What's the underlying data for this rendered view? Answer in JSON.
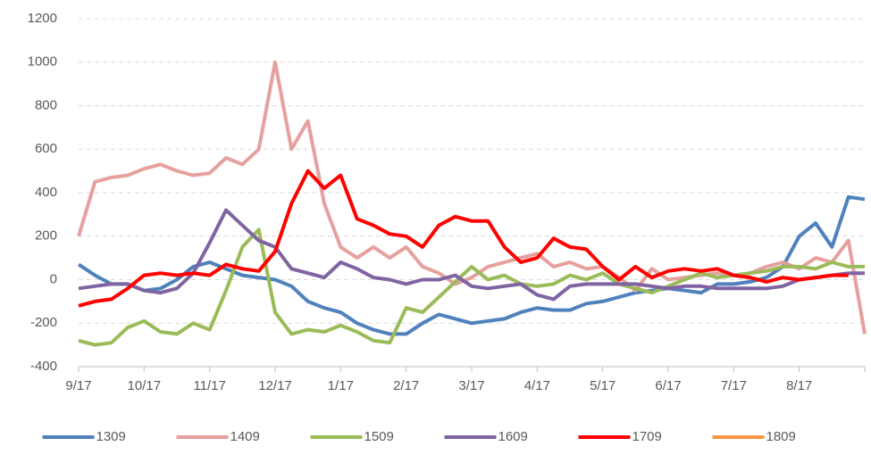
{
  "chart_data": {
    "type": "line",
    "categories": [
      "9/17",
      null,
      null,
      null,
      "10/17",
      null,
      null,
      null,
      "11/17",
      null,
      null,
      null,
      "12/17",
      null,
      null,
      null,
      "1/17",
      null,
      null,
      null,
      "2/17",
      null,
      null,
      null,
      "3/17",
      null,
      null,
      null,
      "4/17",
      null,
      null,
      null,
      "5/17",
      null,
      null,
      null,
      "6/17",
      null,
      null,
      null,
      "7/17",
      null,
      null,
      null,
      "8/17",
      null,
      null,
      null,
      null
    ],
    "ylim": [
      -400,
      1200
    ],
    "yticks": [
      -400,
      -200,
      0,
      200,
      400,
      600,
      800,
      1000,
      1200
    ],
    "grid": true,
    "legend": "bottom",
    "series": [
      {
        "name": "1309",
        "color": "#4f81bd",
        "values": [
          70,
          20,
          -20,
          -20,
          -50,
          -40,
          0,
          60,
          80,
          50,
          20,
          10,
          0,
          -30,
          -100,
          -130,
          -150,
          -200,
          -230,
          -250,
          -250,
          -200,
          -160,
          -180,
          -200,
          -190,
          -180,
          -150,
          -130,
          -140,
          -140,
          -110,
          -100,
          -80,
          -60,
          -50,
          -40,
          -50,
          -60,
          -20,
          -20,
          -10,
          10,
          60,
          200,
          260,
          150,
          380,
          370
        ]
      },
      {
        "name": "1409",
        "color": "#e6a09e",
        "values": [
          200,
          450,
          470,
          480,
          510,
          530,
          500,
          480,
          490,
          560,
          530,
          600,
          1000,
          600,
          730,
          350,
          150,
          100,
          150,
          100,
          150,
          60,
          30,
          -20,
          10,
          60,
          80,
          100,
          120,
          60,
          80,
          50,
          60,
          10,
          -50,
          50,
          0,
          10,
          20,
          30,
          20,
          30,
          60,
          80,
          50,
          100,
          80,
          180,
          -250
        ]
      },
      {
        "name": "1509",
        "color": "#9bbb59",
        "values": [
          -280,
          -300,
          -290,
          -220,
          -190,
          -240,
          -250,
          -200,
          -230,
          -50,
          150,
          230,
          -150,
          -250,
          -230,
          -240,
          -210,
          -240,
          -280,
          -290,
          -130,
          -150,
          -80,
          -10,
          60,
          0,
          20,
          -20,
          -30,
          -20,
          20,
          0,
          30,
          -20,
          -40,
          -60,
          -30,
          0,
          30,
          10,
          20,
          30,
          40,
          60,
          60,
          50,
          80,
          60,
          60
        ]
      },
      {
        "name": "1609",
        "color": "#8064a2",
        "values": [
          -40,
          -30,
          -20,
          -20,
          -50,
          -60,
          -40,
          30,
          170,
          320,
          250,
          180,
          150,
          50,
          30,
          10,
          80,
          50,
          10,
          0,
          -20,
          0,
          0,
          20,
          -30,
          -40,
          -30,
          -20,
          -70,
          -90,
          -30,
          -20,
          -20,
          -20,
          -20,
          -30,
          -40,
          -30,
          -30,
          -40,
          -40,
          -40,
          -40,
          -30,
          0,
          10,
          20,
          30,
          30
        ]
      },
      {
        "name": "1709",
        "color": "#ff0000",
        "values": [
          -120,
          -100,
          -90,
          -40,
          20,
          30,
          20,
          30,
          20,
          70,
          50,
          40,
          130,
          350,
          500,
          420,
          480,
          280,
          250,
          210,
          200,
          150,
          250,
          290,
          270,
          270,
          150,
          80,
          100,
          190,
          150,
          140,
          60,
          0,
          60,
          10,
          40,
          50,
          40,
          50,
          20,
          10,
          -10,
          10,
          0,
          10,
          20,
          20,
          null
        ]
      },
      {
        "name": "1809",
        "color": "#f79646",
        "values": [
          null,
          null,
          null,
          null,
          null,
          null,
          null,
          null,
          null,
          null,
          null,
          null,
          null,
          null,
          null,
          null,
          null,
          null,
          null,
          null,
          null,
          null,
          null,
          null,
          null,
          null,
          null,
          null,
          null,
          null,
          null,
          null,
          null,
          null,
          null,
          null,
          null,
          null,
          null,
          null,
          null,
          null,
          null,
          null,
          null,
          null,
          null,
          null,
          null
        ]
      }
    ]
  }
}
